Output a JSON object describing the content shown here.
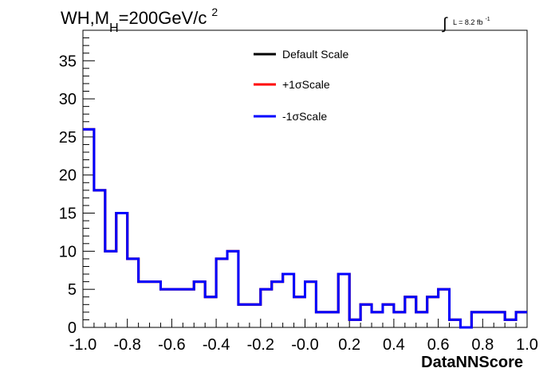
{
  "title": {
    "main": "WH,M",
    "sub": "H",
    "rest": "=200GeV/c",
    "sup": "2"
  },
  "lumi": {
    "integral": "∫",
    "text": "L = 8.2 fb",
    "sup": "-1"
  },
  "colors": {
    "default": "#000000",
    "plus": "#ff0000",
    "minus": "#0000ff"
  },
  "chart_data": {
    "type": "line",
    "step": true,
    "xlabel": "DataNNScore",
    "ylabel": "",
    "xlim": [
      -1.0,
      1.0
    ],
    "ylim": [
      0,
      39
    ],
    "x_ticks": [
      "-1.0",
      "-0.8",
      "-0.6",
      "-0.4",
      "-0.2",
      "-0.0",
      "0.2",
      "0.4",
      "0.6",
      "0.8",
      "1.0"
    ],
    "y_ticks": [
      "0",
      "5",
      "10",
      "15",
      "20",
      "25",
      "30",
      "35"
    ],
    "bin_edges": [
      -1.0,
      -0.95,
      -0.9,
      -0.85,
      -0.8,
      -0.75,
      -0.7,
      -0.65,
      -0.6,
      -0.55,
      -0.5,
      -0.45,
      -0.4,
      -0.35,
      -0.3,
      -0.25,
      -0.2,
      -0.15,
      -0.1,
      -0.05,
      0.0,
      0.05,
      0.1,
      0.15,
      0.2,
      0.25,
      0.3,
      0.35,
      0.4,
      0.45,
      0.5,
      0.55,
      0.6,
      0.65,
      0.7,
      0.75,
      0.8,
      0.85,
      0.9,
      0.95,
      1.0
    ],
    "series": [
      {
        "name": "Default Scale",
        "color": "#000000",
        "values": [
          26,
          18,
          10,
          15,
          9,
          6,
          6,
          5,
          5,
          5,
          6,
          4,
          9,
          10,
          3,
          3,
          5,
          6,
          7,
          4,
          6,
          2,
          2,
          7,
          1,
          3,
          2,
          3,
          2,
          4,
          2,
          4,
          5,
          1,
          0,
          2,
          2,
          2,
          1,
          2
        ]
      },
      {
        "name": "+1σScale",
        "color": "#ff0000",
        "values": [
          26,
          18,
          10,
          15,
          9,
          6,
          6,
          5,
          5,
          5,
          6,
          4,
          9,
          10,
          3,
          3,
          5,
          6,
          7,
          4,
          6,
          2,
          2,
          7,
          1,
          3,
          2,
          3,
          2,
          4,
          2,
          4,
          5,
          1,
          0,
          2,
          2,
          2,
          1,
          2
        ]
      },
      {
        "name": "-1σScale",
        "color": "#0000ff",
        "values": [
          26,
          18,
          10,
          15,
          9,
          6,
          6,
          5,
          5,
          5,
          6,
          4,
          9,
          10,
          3,
          3,
          5,
          6,
          7,
          4,
          6,
          2,
          2,
          7,
          1,
          3,
          2,
          3,
          2,
          4,
          2,
          4,
          5,
          1,
          0,
          2,
          2,
          2,
          1,
          2
        ]
      }
    ],
    "legend": [
      "Default Scale",
      "+1σScale",
      "-1σScale"
    ],
    "legend_position": "top-center",
    "grid": false
  }
}
